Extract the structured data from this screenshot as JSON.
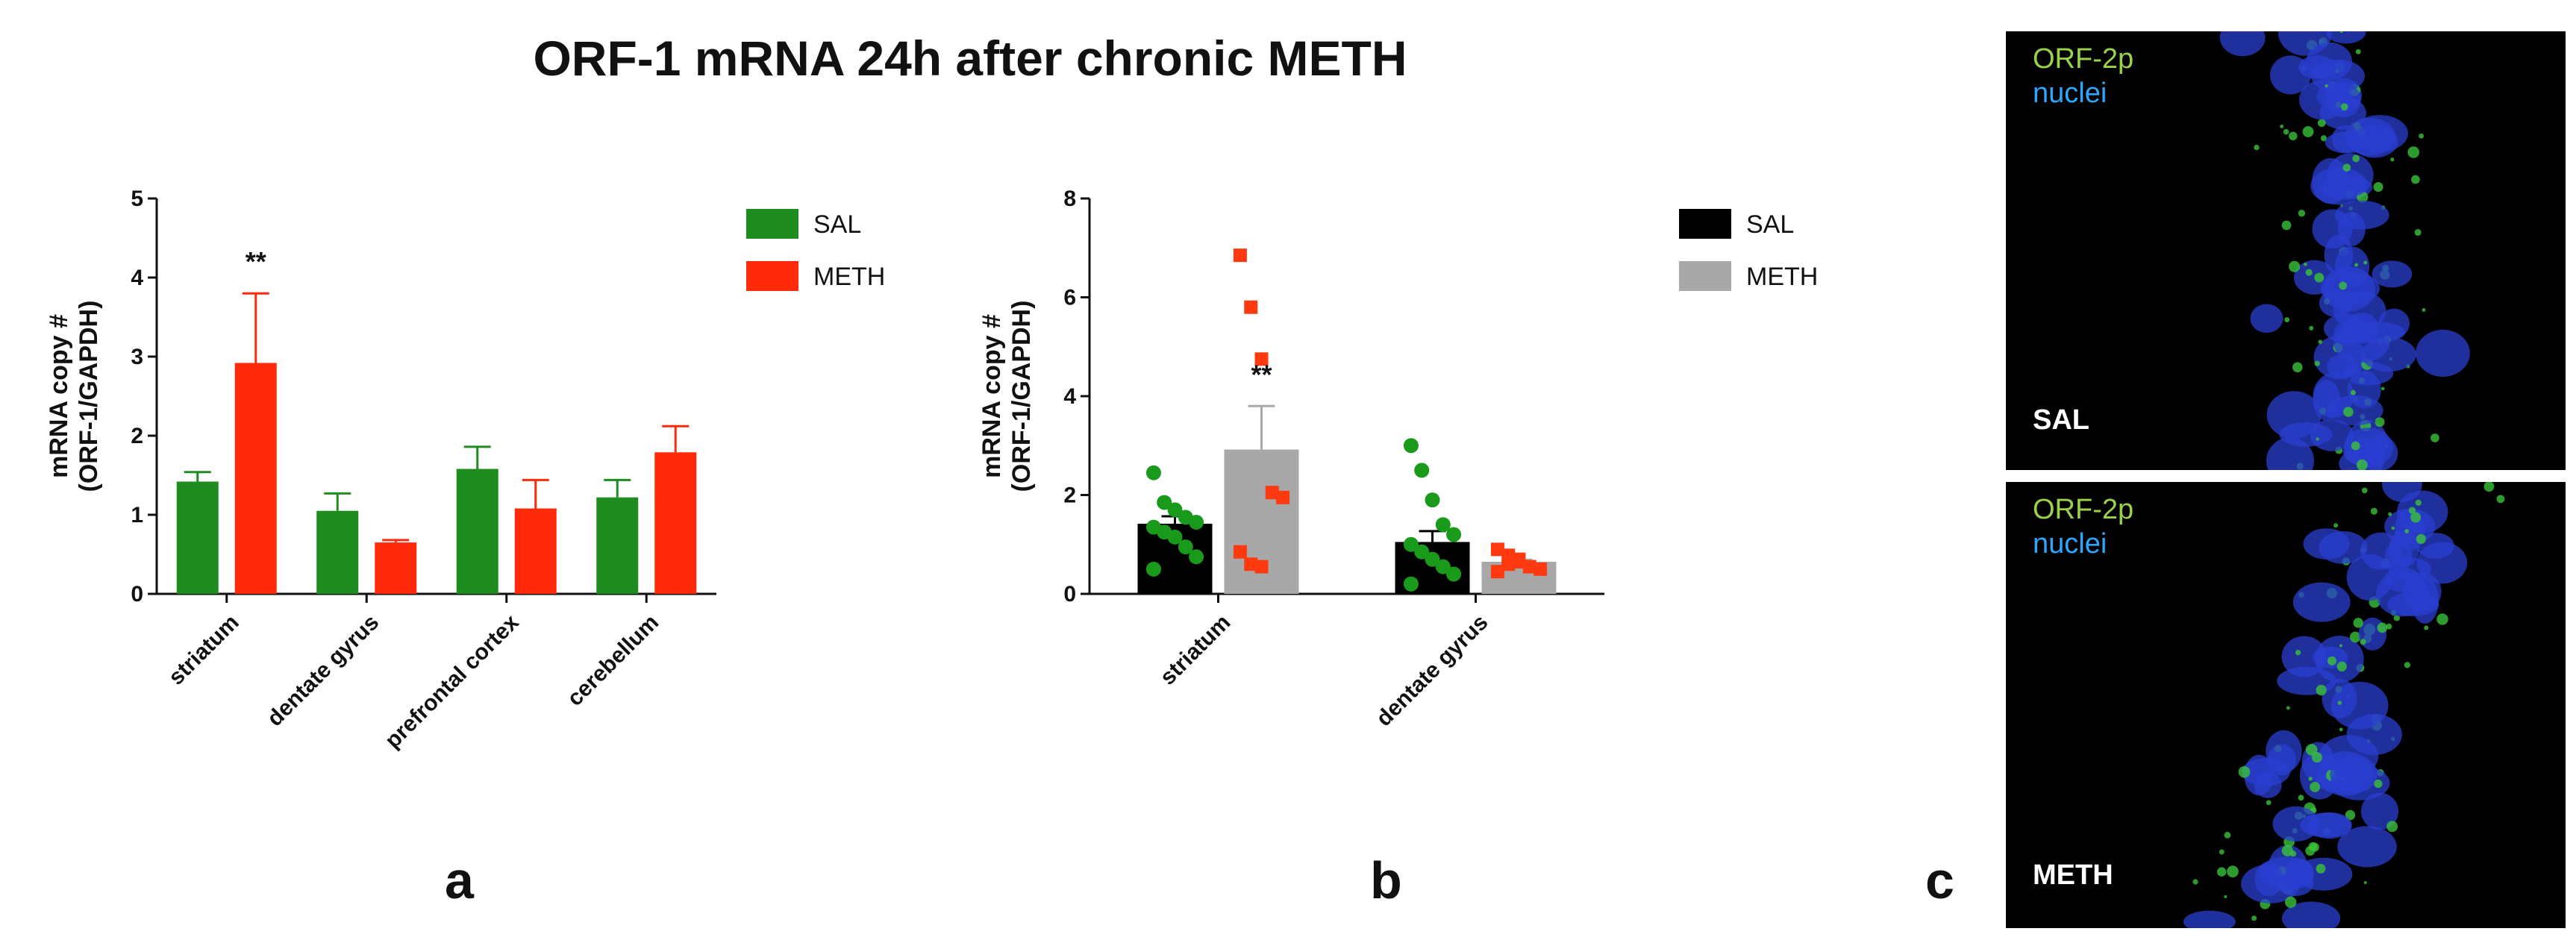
{
  "title": "ORF-1 mRNA 24h after chronic METH",
  "panels": {
    "a": {
      "letter": "a"
    },
    "b": {
      "letter": "b"
    },
    "c": {
      "letter": "c"
    }
  },
  "colors": {
    "sal_a": "#1e8c1e",
    "meth_a": "#ff2a0a",
    "sal_b": "#000000",
    "meth_b": "#a8a8a8",
    "dot_sal": "#1a9a1a",
    "dot_meth": "#ff3a10",
    "green_label": "#9ad34a",
    "blue_label": "#2aa8ff"
  },
  "chart_data": [
    {
      "id": "a",
      "type": "bar",
      "ylabel_line1": "mRNA copy #",
      "ylabel_line2": "(ORF-1/GAPDH)",
      "ylim": [
        0,
        5
      ],
      "yticks": [
        "0",
        "1",
        "2",
        "3",
        "4",
        "5"
      ],
      "categories": [
        "striatum",
        "dentate gyrus",
        "prefrontal cortex",
        "cerebellum"
      ],
      "series": [
        {
          "name": "SAL",
          "values": [
            1.42,
            1.05,
            1.58,
            1.22
          ],
          "errors": [
            0.12,
            0.22,
            0.28,
            0.22
          ]
        },
        {
          "name": "METH",
          "values": [
            2.92,
            0.65,
            1.08,
            1.79
          ],
          "errors": [
            0.88,
            0.03,
            0.36,
            0.33
          ]
        }
      ],
      "annotations": [
        {
          "text": "**",
          "category": "striatum",
          "series": "METH"
        }
      ],
      "legend": "top-right"
    },
    {
      "id": "b",
      "type": "bar",
      "ylabel_line1": "mRNA copy #",
      "ylabel_line2": "(ORF-1/GAPDH)",
      "ylim": [
        0,
        8
      ],
      "yticks": [
        "0",
        "2",
        "4",
        "6",
        "8"
      ],
      "categories": [
        "striatum",
        "dentate gyrus"
      ],
      "series": [
        {
          "name": "SAL",
          "values": [
            1.42,
            1.05
          ],
          "errors": [
            0.15,
            0.22
          ],
          "points": [
            [
              2.45,
              1.85,
              1.7,
              1.55,
              1.45,
              1.35,
              1.25,
              1.15,
              0.95,
              0.75,
              0.5
            ],
            [
              3.0,
              2.5,
              1.9,
              1.4,
              1.2,
              1.0,
              0.85,
              0.7,
              0.55,
              0.4,
              0.2
            ]
          ]
        },
        {
          "name": "METH",
          "values": [
            2.92,
            0.65
          ],
          "errors": [
            0.88,
            0.04
          ],
          "points": [
            [
              6.85,
              5.8,
              4.75,
              2.05,
              1.95,
              0.85,
              0.6,
              0.55
            ],
            [
              0.9,
              0.78,
              0.65,
              0.55,
              0.5,
              0.45,
              0.6,
              0.7
            ]
          ]
        }
      ],
      "annotations": [
        {
          "text": "**",
          "category": "striatum",
          "series": "METH"
        }
      ],
      "legend": "top-right"
    }
  ],
  "micrographs": [
    {
      "id": "sal",
      "marker": "ORF-2p",
      "stain": "nuclei",
      "condition": "SAL"
    },
    {
      "id": "meth",
      "marker": "ORF-2p",
      "stain": "nuclei",
      "condition": "METH"
    }
  ]
}
